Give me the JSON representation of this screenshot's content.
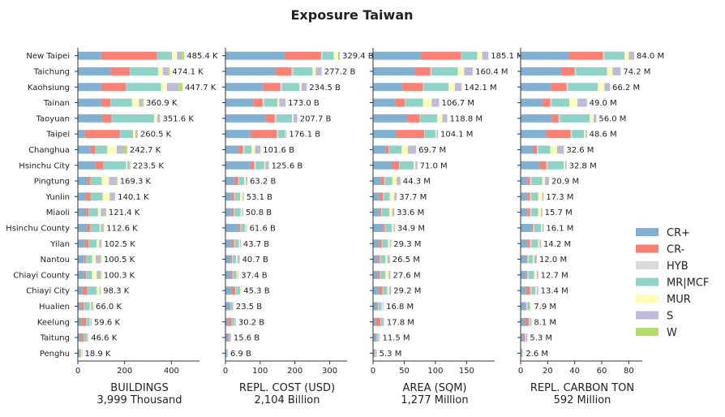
{
  "chart_data": {
    "type": "bar",
    "orientation": "horizontal-stacked",
    "title": "Exposure Taiwan",
    "categories": [
      "New Taipei",
      "Taichung",
      "Kaohsiung",
      "Tainan",
      "Taoyuan",
      "Taipei",
      "Changhua",
      "Hsinchu City",
      "Pingtung",
      "Yunlin",
      "Miaoli",
      "Hsinchu County",
      "Yilan",
      "Nantou",
      "Chiayi County",
      "Chiayi City",
      "Hualien",
      "Keelung",
      "Taitung",
      "Penghu"
    ],
    "legend": {
      "position": "right",
      "items": [
        {
          "name": "CR+",
          "color": "#80b1d3"
        },
        {
          "name": "CR-",
          "color": "#fb8072"
        },
        {
          "name": "HYB",
          "color": "#d9d9d9"
        },
        {
          "name": "MR|MCF",
          "color": "#8dd3c7"
        },
        {
          "name": "MUR",
          "color": "#ffffb3"
        },
        {
          "name": "S",
          "color": "#bebada"
        },
        {
          "name": "W",
          "color": "#b3de69"
        }
      ]
    },
    "panels": [
      {
        "xlabel": "BUILDINGS",
        "sublabel": "3,999 Thousand",
        "xlim": [
          0,
          520
        ],
        "xticks": [
          0,
          200,
          400
        ],
        "segments": [
          [
            100,
            238,
            1,
            63,
            22,
            20,
            11
          ],
          [
            140,
            82,
            1,
            120,
            20,
            25,
            5
          ],
          [
            100,
            105,
            1,
            150,
            25,
            50,
            16
          ],
          [
            100,
            40,
            1,
            90,
            30,
            15,
            5
          ],
          [
            105,
            40,
            1,
            180,
            14,
            10,
            2
          ],
          [
            30,
            150,
            1,
            55,
            10,
            8,
            2
          ],
          [
            55,
            20,
            1,
            50,
            40,
            30,
            15
          ],
          [
            75,
            35,
            1,
            95,
            5,
            8,
            5
          ],
          [
            42,
            10,
            1,
            50,
            30,
            30,
            6
          ],
          [
            35,
            20,
            1,
            50,
            30,
            20,
            4
          ],
          [
            35,
            10,
            1,
            40,
            12,
            16,
            7
          ],
          [
            40,
            12,
            1,
            40,
            5,
            8,
            6
          ],
          [
            30,
            15,
            1,
            35,
            10,
            9,
            2
          ],
          [
            25,
            10,
            1,
            25,
            15,
            20,
            4
          ],
          [
            25,
            10,
            1,
            25,
            20,
            15,
            4
          ],
          [
            20,
            20,
            1,
            40,
            12,
            4,
            1
          ],
          [
            15,
            10,
            1,
            25,
            5,
            5,
            5
          ],
          [
            15,
            20,
            1,
            15,
            3,
            5,
            0
          ],
          [
            15,
            10,
            1,
            15,
            3,
            2,
            0
          ],
          [
            5,
            2,
            1,
            6,
            3,
            2,
            0
          ]
        ],
        "totals": [
          "485.4 K",
          "474.1 K",
          "447.7 K",
          "360.9 K",
          "351.6 K",
          "260.5 K",
          "242.7 K",
          "223.5 K",
          "169.3 K",
          "140.1 K",
          "121.4 K",
          "112.6 K",
          "102.5 K",
          "100.5 K",
          "100.3 K",
          "98.3 K",
          "66.0 K",
          "59.6 K",
          "46.6 K",
          "18.9 K"
        ]
      },
      {
        "xlabel": "REPL. COST (USD)",
        "sublabel": "2,104 Billion",
        "xlim": [
          0,
          350
        ],
        "xticks": [
          0,
          100,
          200,
          300
        ],
        "segments": [
          [
            170,
            105,
            5,
            32,
            12,
            5,
            0
          ],
          [
            145,
            45,
            5,
            55,
            10,
            17,
            0
          ],
          [
            108,
            50,
            5,
            50,
            6,
            15,
            0
          ],
          [
            80,
            27,
            5,
            38,
            5,
            18,
            0
          ],
          [
            115,
            27,
            5,
            45,
            4,
            11,
            0
          ],
          [
            72,
            75,
            5,
            20,
            2,
            2,
            0
          ],
          [
            38,
            12,
            5,
            20,
            10,
            16,
            0
          ],
          [
            72,
            10,
            5,
            25,
            3,
            10,
            0
          ],
          [
            25,
            12,
            2,
            15,
            5,
            4,
            0
          ],
          [
            18,
            7,
            2,
            15,
            8,
            3,
            0
          ],
          [
            18,
            6,
            2,
            18,
            4,
            3,
            0
          ],
          [
            38,
            5,
            2,
            12,
            3,
            2,
            0
          ],
          [
            18,
            7,
            2,
            12,
            3,
            2,
            0
          ],
          [
            15,
            4,
            2,
            10,
            4,
            6,
            0
          ],
          [
            15,
            5,
            2,
            10,
            4,
            2,
            0
          ],
          [
            18,
            10,
            2,
            12,
            2,
            1,
            0
          ],
          [
            12,
            3,
            1,
            5,
            1,
            1,
            0
          ],
          [
            8,
            10,
            1,
            8,
            1,
            2,
            0
          ],
          [
            8,
            3,
            1,
            3,
            0,
            1,
            0
          ],
          [
            3,
            1,
            1,
            1,
            0,
            1,
            0
          ]
        ],
        "totals": [
          "329.4 B",
          "277.2 B",
          "234.5 B",
          "173.0 B",
          "207.7 B",
          "176.1 B",
          "101.6 B",
          "125.6 B",
          "63.2 B",
          "53.1 B",
          "50.8 B",
          "61.6 B",
          "43.7 B",
          "40.7 B",
          "37.4 B",
          "45.3 B",
          "23.5 B",
          "30.2 B",
          "15.6 B",
          "6.9 B"
        ]
      },
      {
        "xlabel": "AREA (SQM)",
        "sublabel": "1,277 Million",
        "xlim": [
          0,
          195
        ],
        "xticks": [
          0,
          50,
          100,
          150
        ],
        "segments": [
          [
            78,
            63,
            1,
            25,
            8,
            10,
            0
          ],
          [
            67,
            25,
            2,
            42,
            10,
            14,
            0
          ],
          [
            47,
            33,
            1,
            40,
            10,
            11,
            0
          ],
          [
            36,
            15,
            1,
            28,
            14,
            12,
            0
          ],
          [
            55,
            20,
            1,
            27,
            8,
            8,
            0
          ],
          [
            37,
            45,
            1,
            17,
            2,
            2,
            0
          ],
          [
            20,
            5,
            1,
            20,
            10,
            13,
            0
          ],
          [
            30,
            12,
            1,
            22,
            3,
            3,
            0
          ],
          [
            12,
            6,
            1,
            12,
            7,
            6,
            0
          ],
          [
            10,
            6,
            1,
            10,
            7,
            4,
            0
          ],
          [
            10,
            3,
            1,
            12,
            5,
            3,
            0
          ],
          [
            16,
            3,
            1,
            10,
            3,
            2,
            0
          ],
          [
            10,
            4,
            1,
            9,
            3,
            2,
            0
          ],
          [
            8,
            3,
            1,
            8,
            3,
            4,
            0
          ],
          [
            8,
            3,
            1,
            8,
            5,
            3,
            0
          ],
          [
            9,
            6,
            1,
            7,
            3,
            3,
            0
          ],
          [
            6,
            2,
            1,
            5,
            2,
            1,
            0
          ],
          [
            5,
            7,
            1,
            4,
            1,
            0,
            0
          ],
          [
            4,
            2,
            1,
            2,
            1,
            1,
            0
          ],
          [
            2,
            1,
            1,
            1,
            0,
            1,
            0
          ]
        ],
        "totals": [
          "185.1 M",
          "160.4 M",
          "142.1 M",
          "106.7 M",
          "118.8 M",
          "104.1 M",
          "69.7 M",
          "71.0 M",
          "44.3 M",
          "37.7 M",
          "33.6 M",
          "34.9 M",
          "29.3 M",
          "26.5 M",
          "27.6 M",
          "29.2 M",
          "16.8 M",
          "17.8 M",
          "11.5 M",
          "5.3 M"
        ]
      },
      {
        "xlabel": "REPL. CARBON TON",
        "sublabel": "592 Million",
        "xlim": [
          0,
          90
        ],
        "xticks": [
          0,
          20,
          40,
          60,
          80
        ],
        "segments": [
          [
            36,
            25,
            1,
            15,
            3,
            4,
            0
          ],
          [
            30,
            10,
            1,
            23,
            4,
            6,
            0
          ],
          [
            22,
            12,
            1,
            22,
            5,
            4,
            0
          ],
          [
            16,
            6,
            1,
            13,
            6,
            7,
            0
          ],
          [
            23,
            5,
            1,
            22,
            3,
            2,
            0
          ],
          [
            19,
            18,
            1,
            9,
            1,
            1,
            0
          ],
          [
            9,
            3,
            1,
            9,
            5,
            5,
            0
          ],
          [
            14,
            5,
            1,
            12,
            1,
            1,
            0
          ],
          [
            5,
            2,
            1,
            8,
            2,
            3,
            0
          ],
          [
            5,
            2,
            1,
            5,
            3,
            1,
            0
          ],
          [
            5,
            2,
            1,
            5,
            2,
            1,
            0
          ],
          [
            8,
            1,
            1,
            5,
            1,
            1,
            0
          ],
          [
            5,
            2,
            1,
            5,
            1,
            1,
            0
          ],
          [
            4,
            1,
            1,
            3,
            1,
            2,
            0
          ],
          [
            4,
            1,
            1,
            4,
            2,
            1,
            0
          ],
          [
            4,
            3,
            1,
            3,
            1,
            1,
            0
          ],
          [
            3,
            1,
            1,
            2,
            1,
            0,
            0
          ],
          [
            3,
            3,
            1,
            1,
            0,
            0,
            0
          ],
          [
            2,
            1,
            1,
            1,
            0,
            0,
            0
          ],
          [
            1,
            0,
            1,
            0,
            0,
            0,
            0
          ]
        ],
        "totals": [
          "84.0 M",
          "74.2 M",
          "66.2 M",
          "49.0 M",
          "56.0 M",
          "48.6 M",
          "32.6 M",
          "32.8 M",
          "20.9 M",
          "17.3 M",
          "15.7 M",
          "16.1 M",
          "14.2 M",
          "12.0 M",
          "12.7 M",
          "13.4 M",
          "7.9 M",
          "8.1 M",
          "5.3 M",
          "2.6 M"
        ]
      }
    ]
  }
}
